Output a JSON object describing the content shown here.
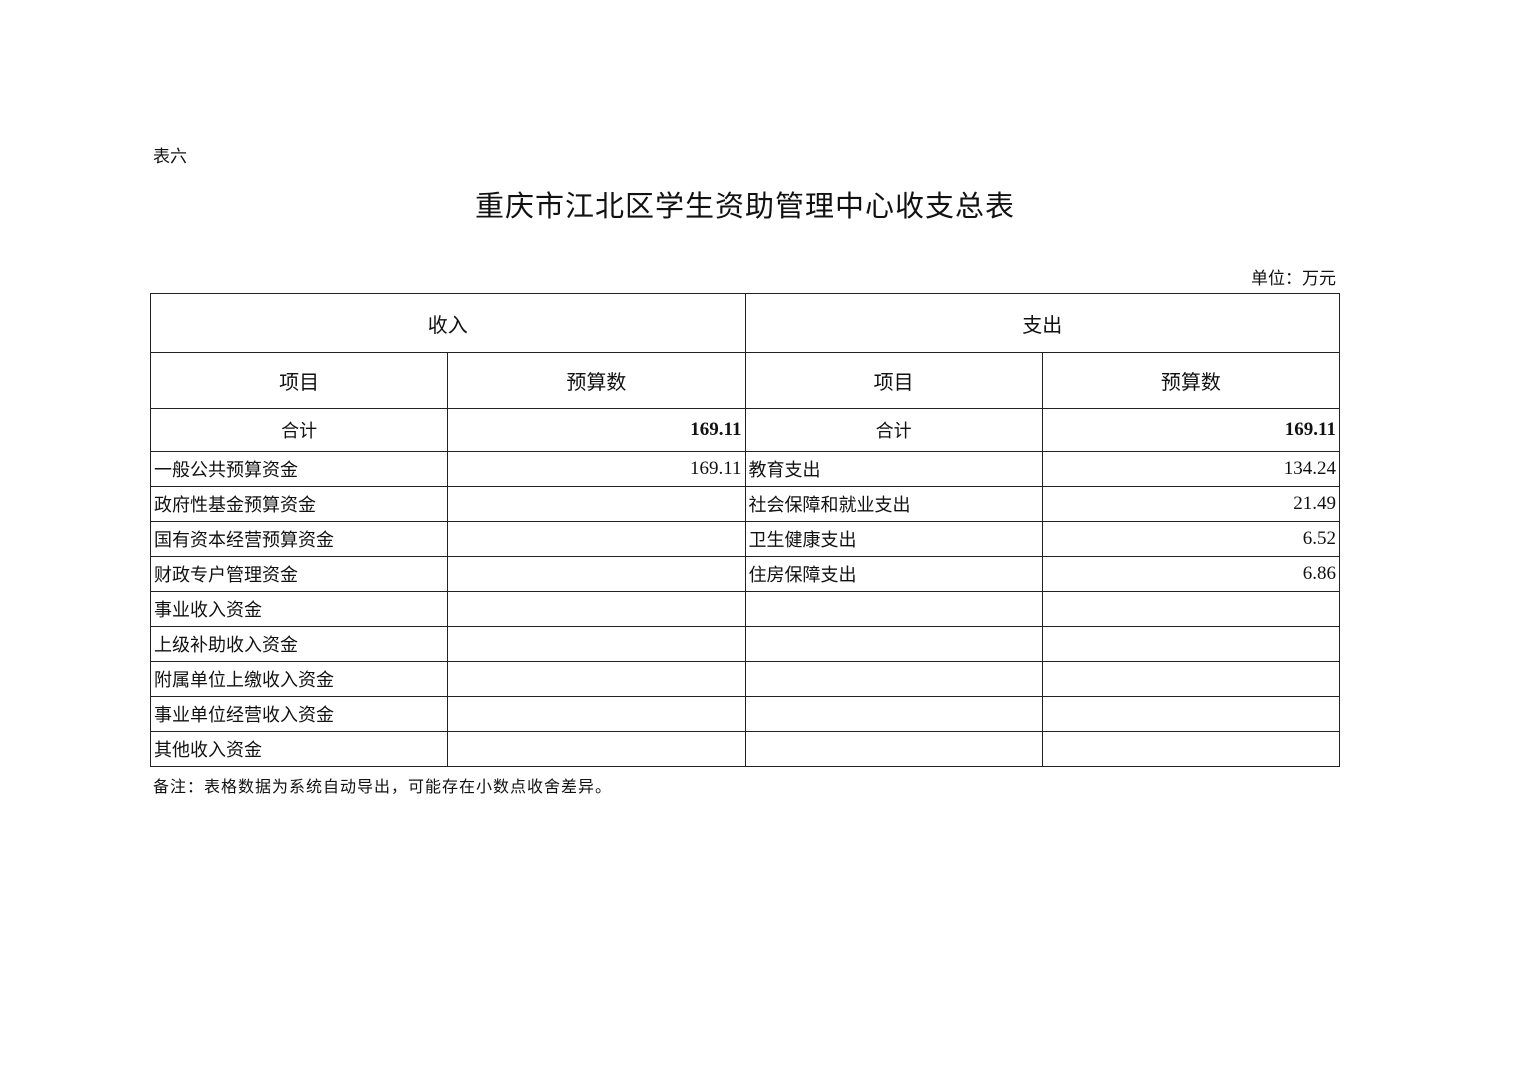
{
  "table_no": "表六",
  "title": "重庆市江北区学生资助管理中心收支总表",
  "unit": "单位：万元",
  "header": {
    "income": "收入",
    "expense": "支出",
    "item": "项目",
    "budget": "预算数"
  },
  "total": {
    "label": "合计",
    "income": "169.11",
    "expense": "169.11"
  },
  "rows": [
    {
      "income_item": "一般公共预算资金",
      "income_value": "169.11",
      "expense_item": "教育支出",
      "expense_value": "134.24"
    },
    {
      "income_item": "政府性基金预算资金",
      "income_value": "",
      "expense_item": "社会保障和就业支出",
      "expense_value": "21.49"
    },
    {
      "income_item": "国有资本经营预算资金",
      "income_value": "",
      "expense_item": "卫生健康支出",
      "expense_value": "6.52"
    },
    {
      "income_item": "财政专户管理资金",
      "income_value": "",
      "expense_item": "住房保障支出",
      "expense_value": "6.86"
    },
    {
      "income_item": "事业收入资金",
      "income_value": "",
      "expense_item": "",
      "expense_value": ""
    },
    {
      "income_item": "上级补助收入资金",
      "income_value": "",
      "expense_item": "",
      "expense_value": ""
    },
    {
      "income_item": "附属单位上缴收入资金",
      "income_value": "",
      "expense_item": "",
      "expense_value": ""
    },
    {
      "income_item": "事业单位经营收入资金",
      "income_value": "",
      "expense_item": "",
      "expense_value": ""
    },
    {
      "income_item": "其他收入资金",
      "income_value": "",
      "expense_item": "",
      "expense_value": ""
    }
  ],
  "note": "备注：表格数据为系统自动导出，可能存在小数点收舍差异。"
}
